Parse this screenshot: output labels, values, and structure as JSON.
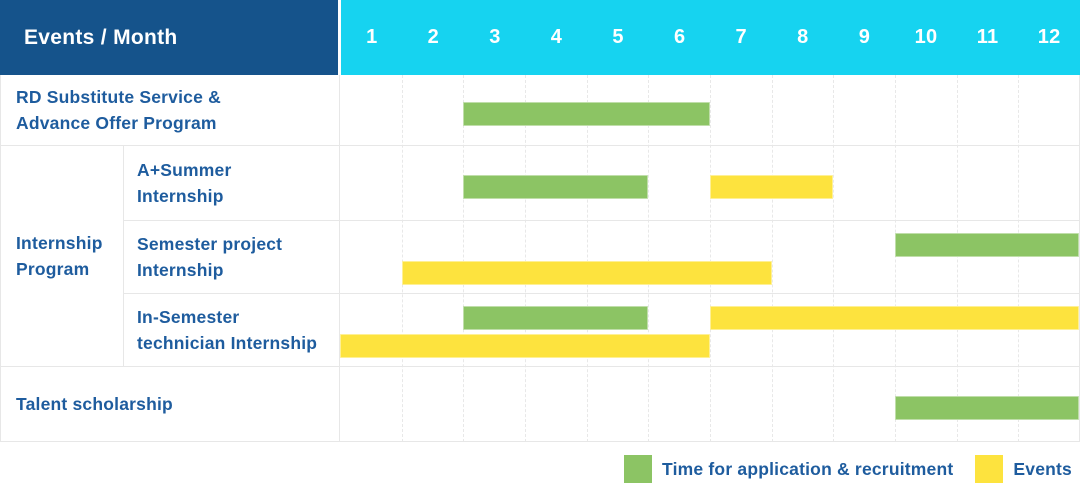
{
  "header": {
    "title": "Events / Month",
    "months": [
      "1",
      "2",
      "3",
      "4",
      "5",
      "6",
      "7",
      "8",
      "9",
      "10",
      "11",
      "12"
    ]
  },
  "colors": {
    "header_bg": "#15538B",
    "months_bg": "#16D3F0",
    "label_text": "#1E5C9E",
    "application_green": "#8CC464",
    "events_yellow": "#FDE33E",
    "grid_line": "#E7E7E7"
  },
  "table": {
    "rows": [
      {
        "kind": "simple",
        "name": "rd-substitute-service-advance-offer-program",
        "label_lines": [
          "RD Substitute Service &",
          "Advance Offer Program"
        ],
        "lines": [
          [
            {
              "series": "application",
              "start": 3,
              "end": 6
            }
          ]
        ]
      },
      {
        "kind": "group",
        "name": "internship-program",
        "label_lines": [
          "Internship",
          "Program"
        ],
        "children": [
          {
            "name": "a-plus-summer-internship",
            "label_lines": [
              "A+Summer",
              "Internship"
            ],
            "lines": [
              [
                {
                  "series": "application",
                  "start": 3,
                  "end": 5
                },
                {
                  "series": "events",
                  "start": 7,
                  "end": 8
                }
              ]
            ]
          },
          {
            "name": "semester-project-internship",
            "label_lines": [
              "Semester project",
              "Internship"
            ],
            "lines": [
              [
                {
                  "series": "application",
                  "start": 10,
                  "end": 12
                }
              ],
              [
                {
                  "series": "events",
                  "start": 2,
                  "end": 7
                }
              ]
            ]
          },
          {
            "name": "in-semester-technician-internship",
            "label_lines": [
              "In-Semester",
              "technician Internship"
            ],
            "lines": [
              [
                {
                  "series": "application",
                  "start": 3,
                  "end": 5
                },
                {
                  "series": "events",
                  "start": 7,
                  "end": 12
                }
              ],
              [
                {
                  "series": "events",
                  "start": 1,
                  "end": 6
                }
              ]
            ]
          }
        ]
      },
      {
        "kind": "simple",
        "name": "talent-scholarship",
        "label_lines": [
          "Talent scholarship"
        ],
        "lines": [
          [
            {
              "series": "application",
              "start": 10,
              "end": 12
            }
          ]
        ]
      }
    ]
  },
  "legend": {
    "items": [
      {
        "series": "application",
        "color": "#8CC464",
        "label": "Time for application & recruitment"
      },
      {
        "series": "events",
        "color": "#FDE33E",
        "label": "Events"
      }
    ]
  },
  "chart_data": {
    "type": "table",
    "title": "Events / Month",
    "x_unit": "month",
    "x_range": [
      1,
      12
    ],
    "legend": [
      "Time for application & recruitment (green)",
      "Events (yellow)"
    ],
    "tasks": [
      {
        "event": "RD Substitute Service & Advance Offer Program",
        "application_recruitment_months": [
          [
            3,
            6
          ]
        ],
        "events_months": []
      },
      {
        "event": "Internship Program - A+Summer Internship",
        "application_recruitment_months": [
          [
            3,
            5
          ]
        ],
        "events_months": [
          [
            7,
            8
          ]
        ]
      },
      {
        "event": "Internship Program - Semester project Internship",
        "application_recruitment_months": [
          [
            10,
            12
          ]
        ],
        "events_months": [
          [
            2,
            7
          ]
        ]
      },
      {
        "event": "Internship Program - In-Semester technician Internship",
        "application_recruitment_months": [
          [
            3,
            5
          ]
        ],
        "events_months": [
          [
            7,
            12
          ],
          [
            1,
            6
          ]
        ]
      },
      {
        "event": "Talent scholarship",
        "application_recruitment_months": [
          [
            10,
            12
          ]
        ],
        "events_months": []
      }
    ]
  }
}
